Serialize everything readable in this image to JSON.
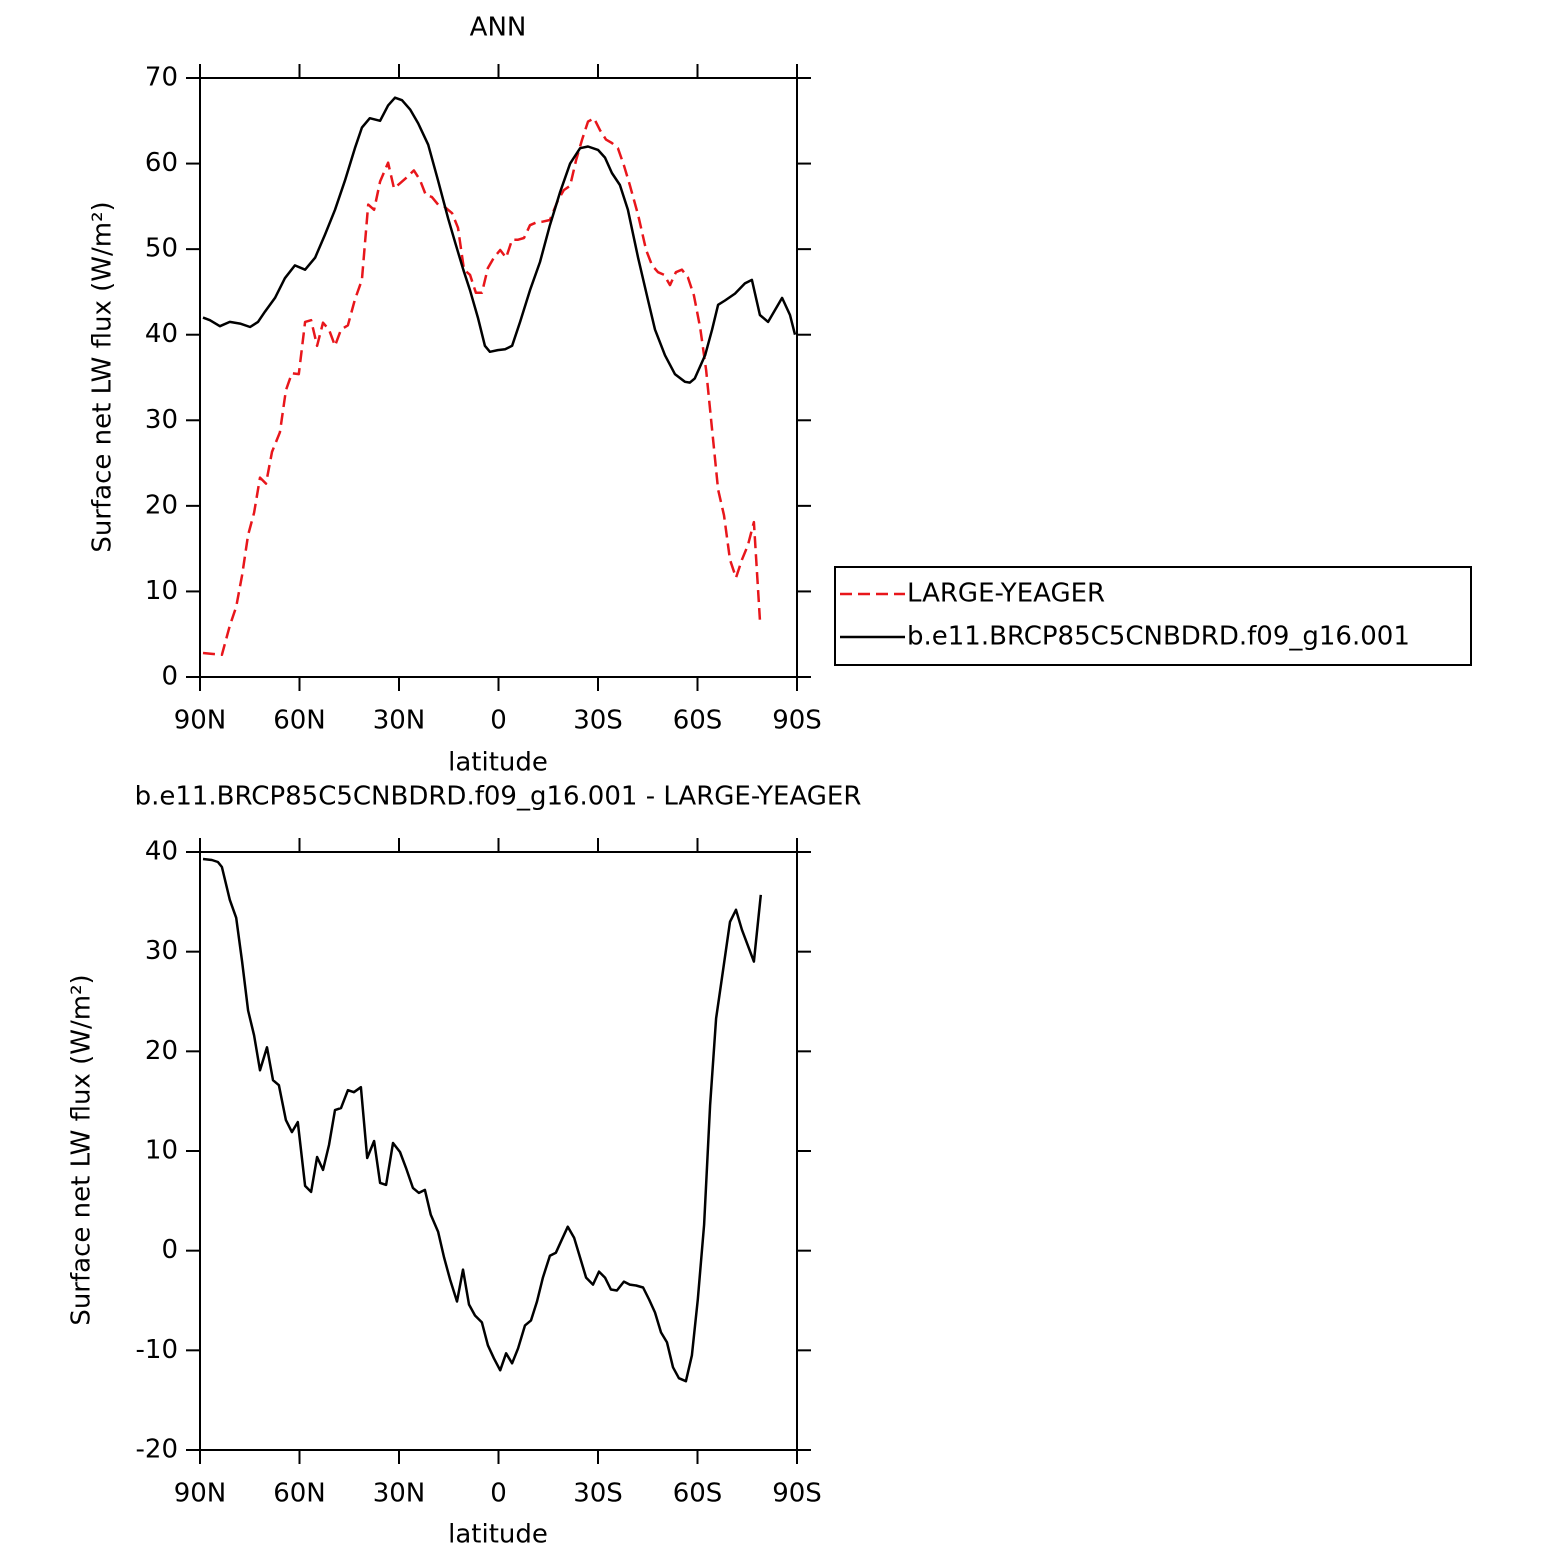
{
  "chart_data": [
    {
      "type": "line",
      "title": "ANN",
      "xlabel": "latitude",
      "ylabel": "Surface net LW flux (W/m²)",
      "xlim": [
        90,
        -90
      ],
      "ylim": [
        0,
        70
      ],
      "xticks": [
        {
          "value": 90,
          "label": "90N"
        },
        {
          "value": 60,
          "label": "60N"
        },
        {
          "value": 30,
          "label": "30N"
        },
        0,
        {
          "value": -30,
          "label": "30S"
        },
        {
          "value": -60,
          "label": "60S"
        },
        {
          "value": -90,
          "label": "90S"
        }
      ],
      "yticks": [
        0,
        10,
        20,
        30,
        40,
        50,
        60,
        70
      ],
      "legend": "right",
      "series": [
        {
          "name": "LARGE-YEAGER",
          "color": "#e8161b",
          "linestyle": "dashed",
          "x": [
            89.1,
            86.4,
            83.4,
            81.0,
            79.1,
            77.3,
            75.5,
            73.7,
            71.9,
            70.1,
            68.3,
            65.9,
            64.1,
            62.3,
            60.2,
            58.3,
            56.5,
            54.7,
            52.9,
            51.1,
            49.3,
            47.5,
            45.4,
            43.3,
            41.2,
            39.3,
            37.5,
            35.7,
            33.3,
            31.5,
            29.7,
            27.9,
            25.5,
            23.7,
            21.9,
            20.1,
            18.2,
            16.4,
            14.0,
            12.2,
            10.4,
            8.6,
            6.8,
            5.0,
            3.2,
            1.4,
            -0.5,
            -2.3,
            -4.1,
            -5.9,
            -7.7,
            -9.5,
            -11.3,
            -13.1,
            -15.5,
            -17.9,
            -19.7,
            -21.6,
            -23.4,
            -25.2,
            -27.0,
            -28.8,
            -30.6,
            -32.4,
            -34.2,
            -36.0,
            -37.8,
            -39.6,
            -42.1,
            -44.5,
            -46.3,
            -48.1,
            -49.9,
            -51.7,
            -53.5,
            -55.3,
            -57.1,
            -58.9,
            -60.8,
            -62.6,
            -64.4,
            -66.2,
            -68.0,
            -69.8,
            -71.6,
            -73.4,
            -75.2,
            -77.0,
            -78.8
          ],
          "values": [
            2.8,
            2.7,
            2.6,
            6.0,
            8.2,
            11.9,
            16.6,
            19.2,
            23.3,
            22.6,
            26.3,
            28.6,
            33.5,
            35.5,
            35.4,
            41.5,
            41.7,
            38.7,
            41.4,
            40.6,
            38.7,
            40.6,
            41.1,
            44.1,
            46.4,
            55.2,
            54.6,
            57.9,
            60.1,
            57.1,
            57.7,
            58.3,
            59.2,
            58.1,
            56.3,
            56.1,
            55.2,
            55.0,
            54.2,
            52.5,
            47.6,
            47.0,
            44.9,
            44.9,
            47.8,
            49.0,
            49.9,
            49.0,
            51.1,
            51.1,
            51.3,
            52.8,
            53.1,
            53.2,
            53.4,
            55.7,
            56.9,
            57.4,
            60.4,
            62.8,
            64.9,
            65.3,
            63.9,
            62.8,
            62.4,
            61.8,
            59.8,
            57.5,
            54.0,
            49.9,
            48.1,
            47.3,
            47.0,
            45.8,
            47.3,
            47.6,
            46.7,
            44.6,
            40.8,
            35.9,
            28.9,
            21.9,
            18.9,
            13.7,
            11.6,
            13.7,
            15.4,
            18.1,
            6.7
          ]
        },
        {
          "name": "b.e11.BRCP85C5CNBDRD.f09_g16.001",
          "color": "#000000",
          "linestyle": "solid",
          "x": [
            89.1,
            87.0,
            84.0,
            81.0,
            77.9,
            74.9,
            72.5,
            70.4,
            67.4,
            64.4,
            61.4,
            58.3,
            55.3,
            52.3,
            49.3,
            46.3,
            43.3,
            41.2,
            38.8,
            35.7,
            33.3,
            31.2,
            29.1,
            26.6,
            24.2,
            21.2,
            18.2,
            15.2,
            13.1,
            10.6,
            8.6,
            6.2,
            4.1,
            2.6,
            0.2,
            -2.0,
            -4.1,
            -6.5,
            -9.5,
            -12.5,
            -15.5,
            -18.5,
            -21.6,
            -24.6,
            -27.0,
            -30.0,
            -32.1,
            -34.2,
            -36.6,
            -39.0,
            -42.1,
            -45.1,
            -47.2,
            -50.2,
            -53.2,
            -56.2,
            -57.7,
            -59.2,
            -62.3,
            -64.4,
            -66.2,
            -68.3,
            -71.3,
            -74.3,
            -76.4,
            -78.8,
            -81.3,
            -83.4,
            -85.5,
            -87.9,
            -89.4
          ],
          "values": [
            42.0,
            41.7,
            41.0,
            41.5,
            41.3,
            40.9,
            41.5,
            42.7,
            44.3,
            46.6,
            48.1,
            47.6,
            49.0,
            51.7,
            54.6,
            58.0,
            61.8,
            64.2,
            65.3,
            65.0,
            66.8,
            67.7,
            67.4,
            66.3,
            64.7,
            62.2,
            58.0,
            53.6,
            50.8,
            47.6,
            45.2,
            42.0,
            38.7,
            38.0,
            38.2,
            38.3,
            38.7,
            41.5,
            45.2,
            48.5,
            52.8,
            56.6,
            60.0,
            61.8,
            62.0,
            61.6,
            60.7,
            58.9,
            57.5,
            54.6,
            49.0,
            44.0,
            40.6,
            37.6,
            35.4,
            34.5,
            34.4,
            34.9,
            37.6,
            40.6,
            43.5,
            44.0,
            44.8,
            46.0,
            46.4,
            42.3,
            41.5,
            42.9,
            44.3,
            42.3,
            40.0
          ]
        }
      ]
    },
    {
      "type": "line",
      "title": "b.e11.BRCP85C5CNBDRD.f09_g16.001 - LARGE-YEAGER",
      "xlabel": "latitude",
      "ylabel": "Surface net LW flux (W/m²)",
      "xlim": [
        90,
        -90
      ],
      "ylim": [
        -20,
        40
      ],
      "xticks": [
        {
          "value": 90,
          "label": "90N"
        },
        {
          "value": 60,
          "label": "60N"
        },
        {
          "value": 30,
          "label": "30N"
        },
        0,
        {
          "value": -30,
          "label": "30S"
        },
        {
          "value": -60,
          "label": "60S"
        },
        {
          "value": -90,
          "label": "90S"
        }
      ],
      "yticks": [
        -20,
        -10,
        0,
        10,
        20,
        30,
        40
      ],
      "series": [
        {
          "color": "#000000",
          "linestyle": "solid",
          "x": [
            89.1,
            86.4,
            84.6,
            83.4,
            81.0,
            79.1,
            77.3,
            75.5,
            73.7,
            71.9,
            69.8,
            68.0,
            66.2,
            64.1,
            62.3,
            60.5,
            58.3,
            56.5,
            54.7,
            52.9,
            51.1,
            49.3,
            47.5,
            45.4,
            43.6,
            41.5,
            39.6,
            37.5,
            35.7,
            33.9,
            31.8,
            29.7,
            27.9,
            25.8,
            24.0,
            22.2,
            20.4,
            18.2,
            16.4,
            14.6,
            12.5,
            10.7,
            8.9,
            7.1,
            5.0,
            3.2,
            1.4,
            -0.5,
            -2.3,
            -4.1,
            -5.9,
            -8.0,
            -9.8,
            -11.6,
            -13.4,
            -15.5,
            -17.3,
            -19.1,
            -20.9,
            -22.8,
            -24.6,
            -26.4,
            -28.5,
            -30.3,
            -32.1,
            -33.9,
            -35.7,
            -37.8,
            -39.6,
            -41.5,
            -43.6,
            -45.4,
            -47.2,
            -49.0,
            -50.8,
            -52.6,
            -54.4,
            -56.5,
            -58.3,
            -60.1,
            -62.0,
            -63.8,
            -65.6,
            -67.4,
            -69.8,
            -71.6,
            -73.4,
            -77.0,
            -79.1
          ],
          "values": [
            39.3,
            39.2,
            39.0,
            38.5,
            35.2,
            33.4,
            29.0,
            24.1,
            21.6,
            18.1,
            20.4,
            17.1,
            16.6,
            13.1,
            11.9,
            12.9,
            6.5,
            5.9,
            9.4,
            8.1,
            10.6,
            14.1,
            14.3,
            16.1,
            15.9,
            16.4,
            9.3,
            11.0,
            6.8,
            6.6,
            10.8,
            9.9,
            8.3,
            6.3,
            5.8,
            6.1,
            3.6,
            1.9,
            -0.7,
            -2.9,
            -5.1,
            -1.9,
            -5.4,
            -6.5,
            -7.2,
            -9.5,
            -10.8,
            -12.0,
            -10.3,
            -11.3,
            -9.8,
            -7.5,
            -7.0,
            -5.1,
            -2.7,
            -0.5,
            -0.2,
            1.1,
            2.4,
            1.3,
            -0.7,
            -2.7,
            -3.4,
            -2.1,
            -2.7,
            -3.9,
            -4.0,
            -3.1,
            -3.4,
            -3.5,
            -3.7,
            -4.9,
            -6.2,
            -8.2,
            -9.2,
            -11.7,
            -12.8,
            -13.1,
            -10.5,
            -4.9,
            2.6,
            14.6,
            23.3,
            27.4,
            33.0,
            34.2,
            32.2,
            29.0,
            35.7
          ]
        }
      ]
    }
  ]
}
